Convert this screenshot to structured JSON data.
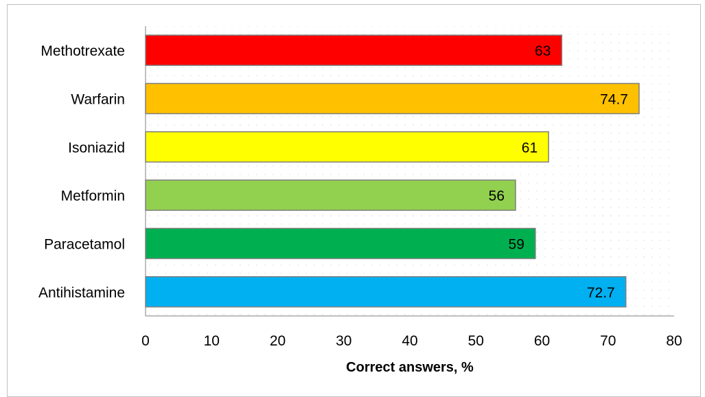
{
  "chart_data": {
    "type": "bar",
    "orientation": "horizontal",
    "categories": [
      "Methotrexate",
      "Warfarin",
      "Isoniazid",
      "Metformin",
      "Paracetamol",
      "Antihistamine"
    ],
    "values": [
      63,
      74.7,
      61,
      56,
      59,
      72.7
    ],
    "value_labels": [
      "63",
      "74.7",
      "61",
      "56",
      "59",
      "72.7"
    ],
    "colors": [
      "#ff0000",
      "#ffc000",
      "#ffff00",
      "#92d050",
      "#00b050",
      "#00b0f0"
    ],
    "xlabel": "Correct answers, %",
    "ylabel": "",
    "title": "",
    "xlim": [
      0,
      80
    ],
    "xticks": [
      "0",
      "10",
      "20",
      "30",
      "40",
      "50",
      "60",
      "70",
      "80"
    ],
    "grid": "dotted background",
    "legend": "none"
  }
}
